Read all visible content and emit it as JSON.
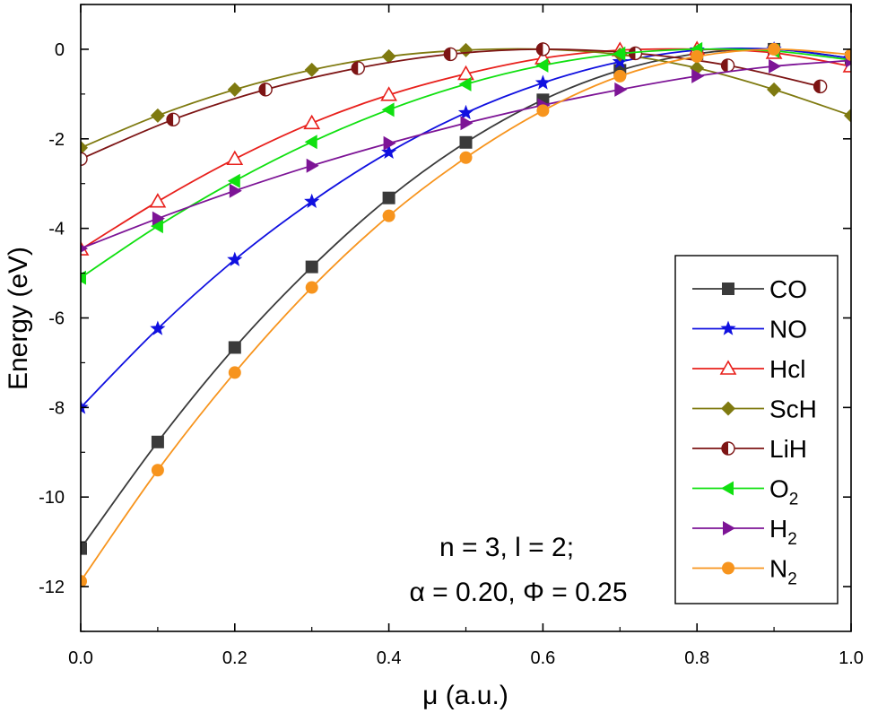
{
  "chart_data": {
    "type": "line",
    "xlabel": "μ (a.u.)",
    "ylabel": "Energy (eV)",
    "xlim": [
      0.0,
      1.0
    ],
    "ylim": [
      -13,
      1
    ],
    "x_ticks": [
      0.0,
      0.2,
      0.4,
      0.6,
      0.8,
      1.0
    ],
    "x_tick_labels": [
      "0.0",
      "0.2",
      "0.4",
      "0.6",
      "0.8",
      "1.0"
    ],
    "y_ticks": [
      -12,
      -10,
      -8,
      -6,
      -4,
      -2,
      0
    ],
    "y_tick_labels": [
      "-12",
      "-10",
      "-8",
      "-6",
      "-4",
      "-2",
      "0"
    ],
    "grid": false,
    "legend_position": "right",
    "annotation": {
      "line1": "n = 3, l = 2;",
      "line2": "α = 0.20, Φ = 0.25"
    },
    "series": [
      {
        "name": "CO",
        "sub": "",
        "color": "#3a3a3a",
        "marker": "square",
        "x": [
          0.0,
          0.1,
          0.2,
          0.3,
          0.4,
          0.5,
          0.6,
          0.7,
          0.8,
          0.9,
          1.0
        ],
        "y": [
          -11.15,
          -8.77,
          -6.66,
          -4.86,
          -3.32,
          -2.08,
          -1.13,
          -0.47,
          -0.1,
          0.0,
          -0.2
        ]
      },
      {
        "name": "NO",
        "sub": "",
        "color": "#1010e0",
        "marker": "star",
        "x": [
          0.0,
          0.1,
          0.2,
          0.3,
          0.4,
          0.5,
          0.6,
          0.7,
          0.8,
          0.9,
          1.0
        ],
        "y": [
          -8.0,
          -6.24,
          -4.7,
          -3.4,
          -2.3,
          -1.42,
          -0.75,
          -0.28,
          -0.02,
          0.0,
          -0.2
        ]
      },
      {
        "name": "Hcl",
        "sub": "",
        "color": "#e8201c",
        "marker": "triangle",
        "x": [
          0.0,
          0.1,
          0.2,
          0.3,
          0.4,
          0.5,
          0.6,
          0.7,
          0.8,
          0.9,
          1.0
        ],
        "y": [
          -4.47,
          -3.4,
          -2.45,
          -1.65,
          -1.02,
          -0.55,
          -0.2,
          -0.02,
          0.0,
          -0.08,
          -0.38
        ]
      },
      {
        "name": "ScH",
        "sub": "",
        "color": "#7f7a10",
        "marker": "diamond",
        "x": [
          0.0,
          0.1,
          0.2,
          0.3,
          0.4,
          0.5,
          0.6,
          0.7,
          0.8,
          0.9,
          1.0
        ],
        "y": [
          -2.2,
          -1.48,
          -0.9,
          -0.46,
          -0.16,
          -0.02,
          0.0,
          -0.12,
          -0.42,
          -0.9,
          -1.48
        ]
      },
      {
        "name": "LiH",
        "sub": "",
        "color": "#7d1414",
        "marker": "half-circle",
        "x": [
          0.0,
          0.12,
          0.24,
          0.36,
          0.48,
          0.6,
          0.72,
          0.84,
          0.96
        ],
        "y": [
          -2.45,
          -1.57,
          -0.9,
          -0.42,
          -0.11,
          0.0,
          -0.09,
          -0.36,
          -0.83
        ]
      },
      {
        "name": "O",
        "sub": "2",
        "color": "#10e010",
        "marker": "triangle-left",
        "x": [
          0.0,
          0.1,
          0.2,
          0.3,
          0.4,
          0.5,
          0.6,
          0.7,
          0.8,
          0.9,
          1.0
        ],
        "y": [
          -5.1,
          -3.95,
          -2.94,
          -2.07,
          -1.35,
          -0.78,
          -0.36,
          -0.1,
          0.0,
          -0.04,
          -0.24
        ]
      },
      {
        "name": "H",
        "sub": "2",
        "color": "#7d1496",
        "marker": "triangle-right",
        "x": [
          0.0,
          0.1,
          0.2,
          0.3,
          0.4,
          0.5,
          0.6,
          0.7,
          0.8,
          0.9,
          1.0
        ],
        "y": [
          -4.45,
          -3.78,
          -3.16,
          -2.6,
          -2.1,
          -1.65,
          -1.25,
          -0.9,
          -0.6,
          -0.38,
          -0.25
        ]
      },
      {
        "name": "N",
        "sub": "2",
        "color": "#f7941d",
        "marker": "circle",
        "x": [
          0.0,
          0.1,
          0.2,
          0.3,
          0.4,
          0.5,
          0.6,
          0.7,
          0.8,
          0.9,
          1.0
        ],
        "y": [
          -11.88,
          -9.4,
          -7.22,
          -5.32,
          -3.72,
          -2.42,
          -1.37,
          -0.6,
          -0.16,
          0.0,
          -0.12
        ]
      }
    ]
  }
}
